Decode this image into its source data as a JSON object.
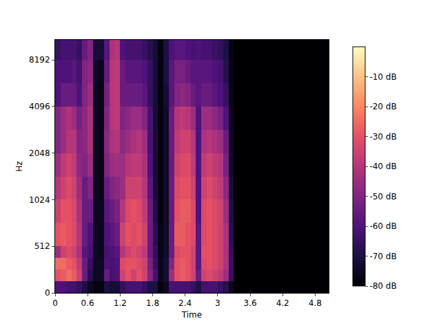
{
  "chart_data": {
    "type": "heatmap",
    "x_label": "Time",
    "y_label": "Hz",
    "log": "y",
    "x": [
      0,
      0.1,
      0.2,
      0.3,
      0.4,
      0.5,
      0.6,
      0.7,
      0.8,
      0.9,
      1.0,
      1.1,
      1.2,
      1.3,
      1.4,
      1.5,
      1.6,
      1.7,
      1.8,
      1.9,
      2.0,
      2.1,
      2.2,
      2.3,
      2.4,
      2.5,
      2.6,
      2.7,
      2.8,
      2.9,
      3.0,
      3.1,
      3.2,
      3.3,
      5.05
    ],
    "y": [
      0,
      128,
      256,
      384,
      512,
      724,
      1024,
      1448,
      2048,
      2896,
      4096,
      5793,
      8192,
      11025
    ],
    "values": [
      [
        -60,
        -30,
        -25,
        -45,
        -30,
        -35,
        -40,
        -45,
        -50,
        -50,
        -60,
        -60,
        -65
      ],
      [
        -60,
        -28,
        -25,
        -35,
        -28,
        -30,
        -35,
        -38,
        -45,
        -45,
        -55,
        -60,
        -62
      ],
      [
        -62,
        -25,
        -28,
        -32,
        -30,
        -30,
        -32,
        -35,
        -40,
        -42,
        -55,
        -60,
        -62
      ],
      [
        -62,
        -28,
        -30,
        -35,
        -32,
        -33,
        -35,
        -38,
        -40,
        -45,
        -55,
        -58,
        -62
      ],
      [
        -65,
        -35,
        -38,
        -42,
        -40,
        -42,
        -45,
        -48,
        -50,
        -52,
        -60,
        -62,
        -65
      ],
      [
        -70,
        -55,
        -55,
        -58,
        -55,
        -55,
        -55,
        -50,
        -48,
        -48,
        -50,
        -50,
        -55
      ],
      [
        -75,
        -68,
        -65,
        -62,
        -60,
        -55,
        -50,
        -45,
        -42,
        -42,
        -45,
        -48,
        -50
      ],
      [
        -78,
        -75,
        -75,
        -75,
        -75,
        -76,
        -76,
        -76,
        -76,
        -76,
        -76,
        -75,
        -72
      ],
      [
        -78,
        -75,
        -75,
        -76,
        -76,
        -76,
        -77,
        -77,
        -77,
        -77,
        -77,
        -76,
        -72
      ],
      [
        -70,
        -55,
        -60,
        -62,
        -60,
        -58,
        -55,
        -50,
        -48,
        -50,
        -52,
        -55,
        -58
      ],
      [
        -72,
        -62,
        -62,
        -60,
        -58,
        -55,
        -50,
        -45,
        -42,
        -40,
        -40,
        -40,
        -42
      ],
      [
        -72,
        -60,
        -60,
        -58,
        -55,
        -52,
        -48,
        -44,
        -40,
        -38,
        -38,
        -38,
        -40
      ],
      [
        -65,
        -35,
        -32,
        -40,
        -35,
        -40,
        -45,
        -45,
        -48,
        -50,
        -55,
        -55,
        -60
      ],
      [
        -62,
        -30,
        -30,
        -35,
        -30,
        -32,
        -35,
        -40,
        -45,
        -48,
        -55,
        -58,
        -62
      ],
      [
        -62,
        -35,
        -30,
        -32,
        -32,
        -30,
        -35,
        -38,
        -42,
        -45,
        -55,
        -58,
        -62
      ],
      [
        -62,
        -30,
        -32,
        -35,
        -30,
        -32,
        -35,
        -38,
        -40,
        -45,
        -55,
        -58,
        -62
      ],
      [
        -65,
        -35,
        -35,
        -38,
        -35,
        -38,
        -40,
        -42,
        -45,
        -50,
        -58,
        -60,
        -65
      ],
      [
        -70,
        -50,
        -52,
        -55,
        -55,
        -55,
        -58,
        -60,
        -62,
        -62,
        -65,
        -65,
        -68
      ],
      [
        -70,
        -62,
        -65,
        -66,
        -68,
        -70,
        -72,
        -72,
        -72,
        -72,
        -72,
        -72,
        -72
      ],
      [
        -78,
        -76,
        -76,
        -77,
        -77,
        -78,
        -78,
        -78,
        -78,
        -78,
        -78,
        -78,
        -78
      ],
      [
        -75,
        -72,
        -72,
        -74,
        -74,
        -74,
        -74,
        -74,
        -74,
        -74,
        -72,
        -70,
        -70
      ],
      [
        -62,
        -45,
        -50,
        -55,
        -55,
        -55,
        -55,
        -55,
        -55,
        -55,
        -58,
        -58,
        -60
      ],
      [
        -62,
        -30,
        -30,
        -32,
        -28,
        -30,
        -32,
        -35,
        -38,
        -40,
        -50,
        -52,
        -58
      ],
      [
        -62,
        -28,
        -28,
        -30,
        -28,
        -28,
        -30,
        -32,
        -35,
        -38,
        -48,
        -52,
        -58
      ],
      [
        -62,
        -30,
        -30,
        -30,
        -30,
        -28,
        -30,
        -32,
        -35,
        -40,
        -50,
        -55,
        -60
      ],
      [
        -65,
        -35,
        -35,
        -35,
        -32,
        -32,
        -35,
        -38,
        -40,
        -45,
        -55,
        -58,
        -62
      ],
      [
        -70,
        -55,
        -58,
        -58,
        -58,
        -60,
        -60,
        -60,
        -60,
        -60,
        -58,
        -58,
        -60
      ],
      [
        -62,
        -35,
        -32,
        -30,
        -32,
        -32,
        -35,
        -38,
        -42,
        -45,
        -55,
        -58,
        -62
      ],
      [
        -62,
        -32,
        -30,
        -30,
        -30,
        -30,
        -32,
        -35,
        -40,
        -45,
        -55,
        -58,
        -62
      ],
      [
        -62,
        -35,
        -32,
        -32,
        -32,
        -32,
        -35,
        -38,
        -42,
        -48,
        -58,
        -60,
        -64
      ],
      [
        -65,
        -38,
        -35,
        -35,
        -35,
        -35,
        -38,
        -40,
        -45,
        -52,
        -60,
        -62,
        -66
      ],
      [
        -68,
        -45,
        -42,
        -42,
        -42,
        -45,
        -48,
        -52,
        -55,
        -60,
        -65,
        -68,
        -70
      ],
      [
        -75,
        -65,
        -65,
        -66,
        -68,
        -70,
        -72,
        -74,
        -75,
        -76,
        -77,
        -77,
        -78
      ],
      [
        -80,
        -80,
        -80,
        -80,
        -80,
        -80,
        -80,
        -80,
        -80,
        -80,
        -80,
        -80,
        -80
      ]
    ],
    "xlim": [
      0,
      5.05
    ],
    "xticks": [
      0,
      0.6,
      1.2,
      1.8,
      2.4,
      3,
      3.6,
      4.2,
      4.8
    ],
    "ylim": [
      0,
      11025
    ],
    "yticks": [
      0,
      512,
      1024,
      2048,
      4096,
      8192
    ],
    "colorbar": {
      "range": [
        -80,
        0
      ],
      "ticks": [
        {
          "value": -10,
          "label": "-10 dB"
        },
        {
          "value": -20,
          "label": "-20 dB"
        },
        {
          "value": -30,
          "label": "-30 dB"
        },
        {
          "value": -40,
          "label": "-40 dB"
        },
        {
          "value": -50,
          "label": "-50 dB"
        },
        {
          "value": -60,
          "label": "-60 dB"
        },
        {
          "value": -70,
          "label": "-70 dB"
        },
        {
          "value": -80,
          "label": "-80 dB"
        }
      ]
    }
  }
}
